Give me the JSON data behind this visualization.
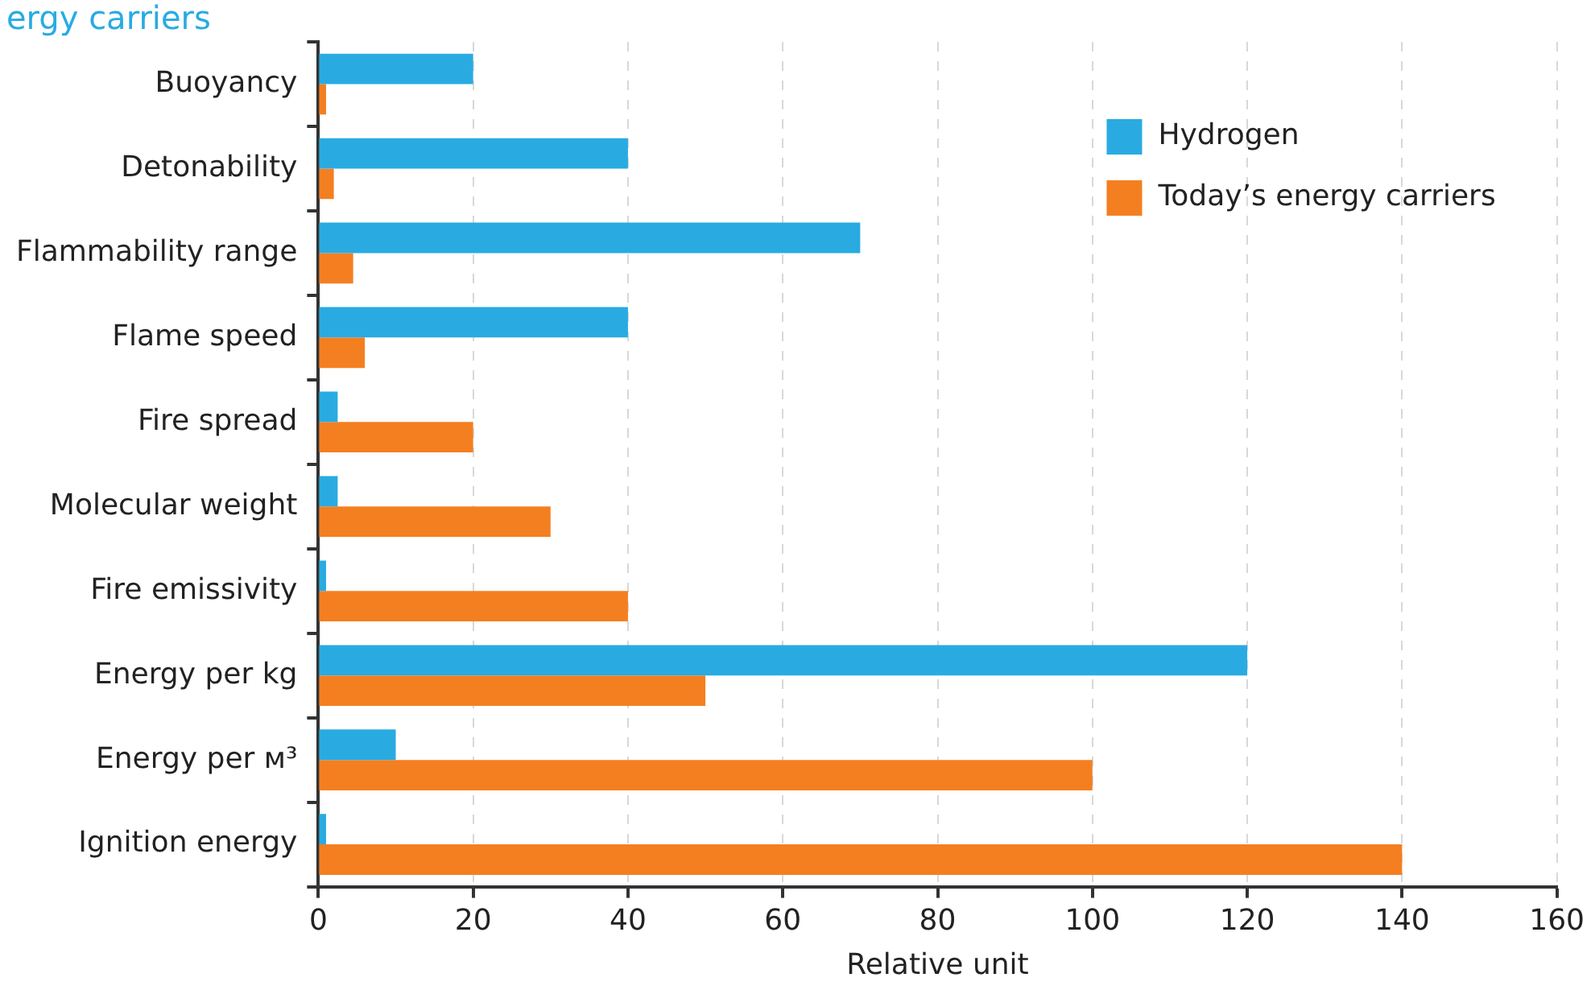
{
  "chart_data": {
    "type": "bar",
    "orientation": "horizontal",
    "title": "ergy carriers",
    "xlabel": "Relative unit",
    "categories": [
      "Buoyancy",
      "Detonability",
      "Flammability range",
      "Flame speed",
      "Fire spread",
      "Molecular weight",
      "Fire emissivity",
      "Energy per kg",
      "Energy per м³",
      "Ignition energy"
    ],
    "series": [
      {
        "name": "Hydrogen",
        "color": "#29abe2",
        "values": [
          20,
          40,
          70,
          40,
          2.5,
          2.5,
          1,
          120,
          10,
          1
        ]
      },
      {
        "name": "Today’s energy carriers",
        "color": "#f47f20",
        "values": [
          1,
          2,
          4.5,
          6,
          20,
          30,
          40,
          50,
          100,
          140
        ]
      }
    ],
    "xlim": [
      0,
      160
    ],
    "xticks": [
      0,
      20,
      40,
      60,
      80,
      100,
      120,
      140,
      160
    ],
    "grid": "x",
    "legend": "top right"
  }
}
